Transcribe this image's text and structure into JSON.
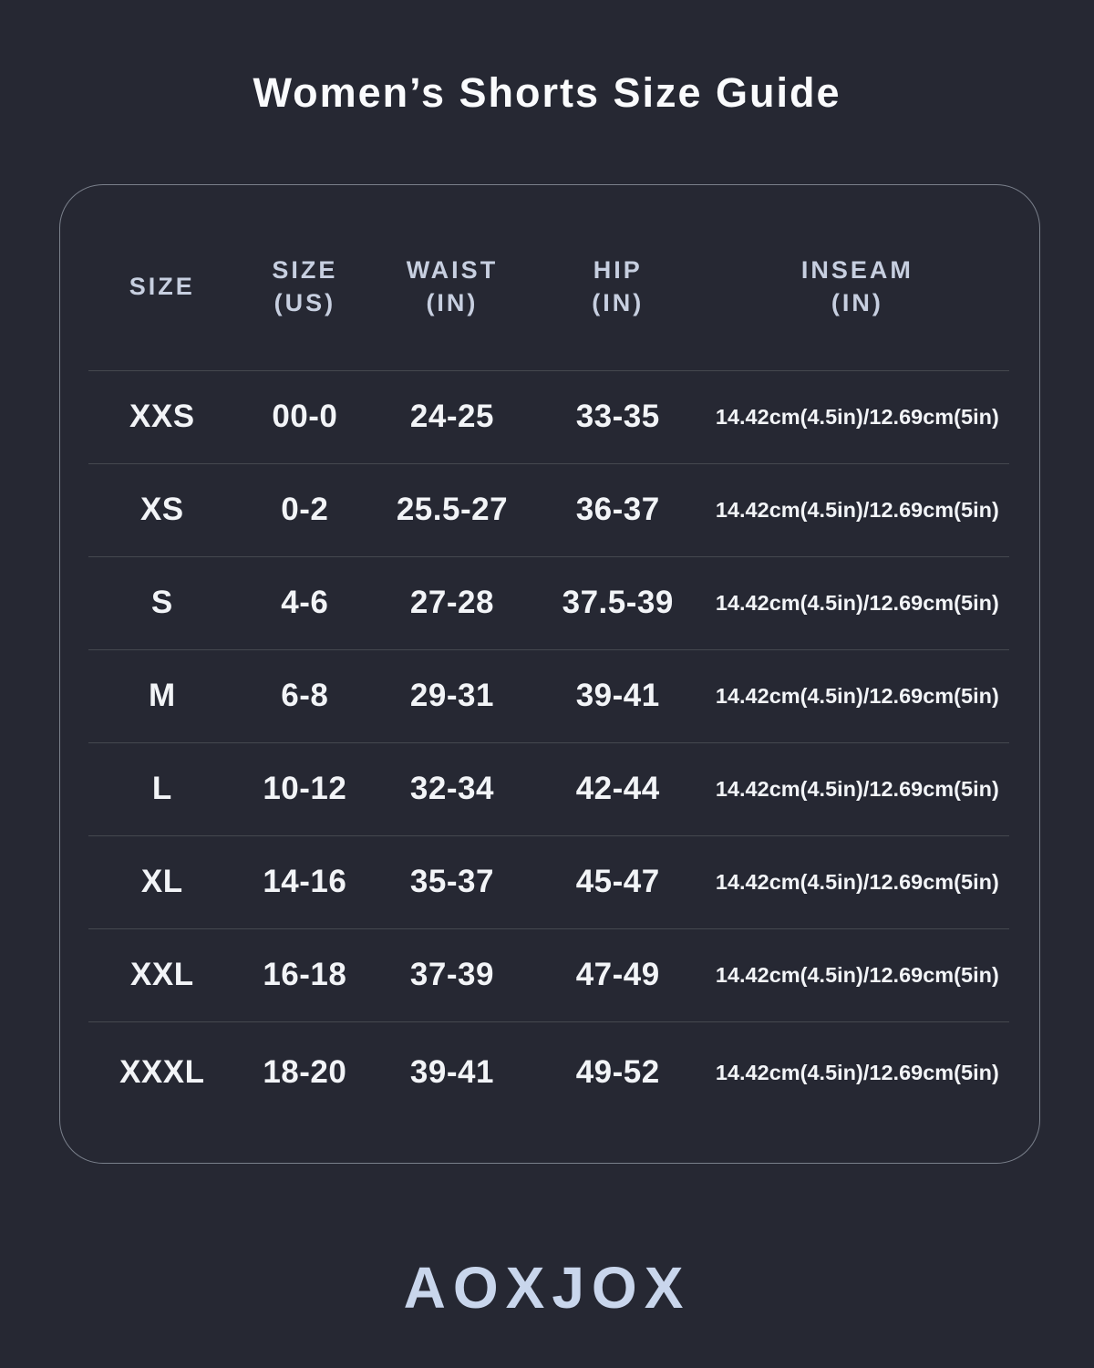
{
  "page": {
    "title": "Women’s Shorts Size Guide",
    "brand": "AOXJOX"
  },
  "colors": {
    "background": "#262833",
    "panel_border": "#a8afbc",
    "divider": "#45484f",
    "header_text": "#c7cfe0",
    "data_text": "#f2f4f7",
    "title_text": "#fafbfd",
    "logo_text": "#c9d6ec"
  },
  "table": {
    "columns": [
      {
        "label": "SIZE",
        "sub": ""
      },
      {
        "label": "SIZE",
        "sub": "(US)"
      },
      {
        "label": "WAIST",
        "sub": "(IN)"
      },
      {
        "label": "HIP",
        "sub": "(IN)"
      },
      {
        "label": "INSEAM",
        "sub": "(IN)"
      }
    ],
    "rows": [
      {
        "size": "XXS",
        "size_us": "00-0",
        "waist": "24-25",
        "hip": "33-35",
        "inseam": "14.42cm(4.5in)/12.69cm(5in)"
      },
      {
        "size": "XS",
        "size_us": "0-2",
        "waist": "25.5-27",
        "hip": "36-37",
        "inseam": "14.42cm(4.5in)/12.69cm(5in)"
      },
      {
        "size": "S",
        "size_us": "4-6",
        "waist": "27-28",
        "hip": "37.5-39",
        "inseam": "14.42cm(4.5in)/12.69cm(5in)"
      },
      {
        "size": "M",
        "size_us": "6-8",
        "waist": "29-31",
        "hip": "39-41",
        "inseam": "14.42cm(4.5in)/12.69cm(5in)"
      },
      {
        "size": "L",
        "size_us": "10-12",
        "waist": "32-34",
        "hip": "42-44",
        "inseam": "14.42cm(4.5in)/12.69cm(5in)"
      },
      {
        "size": "XL",
        "size_us": "14-16",
        "waist": "35-37",
        "hip": "45-47",
        "inseam": "14.42cm(4.5in)/12.69cm(5in)"
      },
      {
        "size": "XXL",
        "size_us": "16-18",
        "waist": "37-39",
        "hip": "47-49",
        "inseam": "14.42cm(4.5in)/12.69cm(5in)"
      },
      {
        "size": "XXXL",
        "size_us": "18-20",
        "waist": "39-41",
        "hip": "49-52",
        "inseam": "14.42cm(4.5in)/12.69cm(5in)"
      }
    ]
  }
}
